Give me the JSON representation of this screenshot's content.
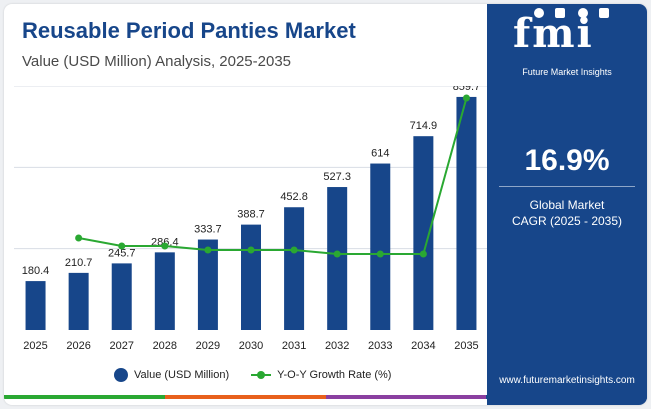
{
  "header": {
    "title": "Reusable Period Panties Market",
    "subtitle": "Value (USD Million) Analysis, 2025-2035"
  },
  "sidebar": {
    "logo_text": "fmi",
    "logo_subtitle": "Future Market Insights",
    "cagr_value": "16.9%",
    "cagr_label_line1": "Global Market",
    "cagr_label_line2": "CAGR (2025 - 2035)",
    "website": "www.futuremarketinsights.com"
  },
  "colors": {
    "brand_blue": "#17468a",
    "growth_green": "#2aa832",
    "bottom_bar": [
      "#2aa832",
      "#e8601c",
      "#8a3fa0",
      "#17468a"
    ]
  },
  "chart_data": {
    "type": "bar",
    "categories": [
      "2025",
      "2026",
      "2027",
      "2028",
      "2029",
      "2030",
      "2031",
      "2032",
      "2033",
      "2034",
      "2035"
    ],
    "series": [
      {
        "name": "Value (USD Million)",
        "type": "bar",
        "values": [
          180.4,
          210.7,
          245.7,
          286.4,
          333.7,
          388.7,
          452.8,
          527.3,
          614,
          714.9,
          859.7
        ],
        "labels": [
          "180.4",
          "210.7",
          "245.7",
          "286.4",
          "333.7",
          "388.7",
          "452.8",
          "527.3",
          "614",
          "714.9",
          "859.7"
        ]
      },
      {
        "name": "Y-O-Y Growth Rate (%)",
        "type": "line",
        "values": [
          null,
          16.8,
          16.6,
          16.6,
          16.5,
          16.5,
          16.5,
          16.4,
          16.4,
          16.4,
          20.3
        ]
      }
    ],
    "ylim": [
      0,
      900
    ],
    "growth_ylim": [
      14.5,
      20.6
    ],
    "grid": true,
    "legend_position": "bottom-center"
  }
}
